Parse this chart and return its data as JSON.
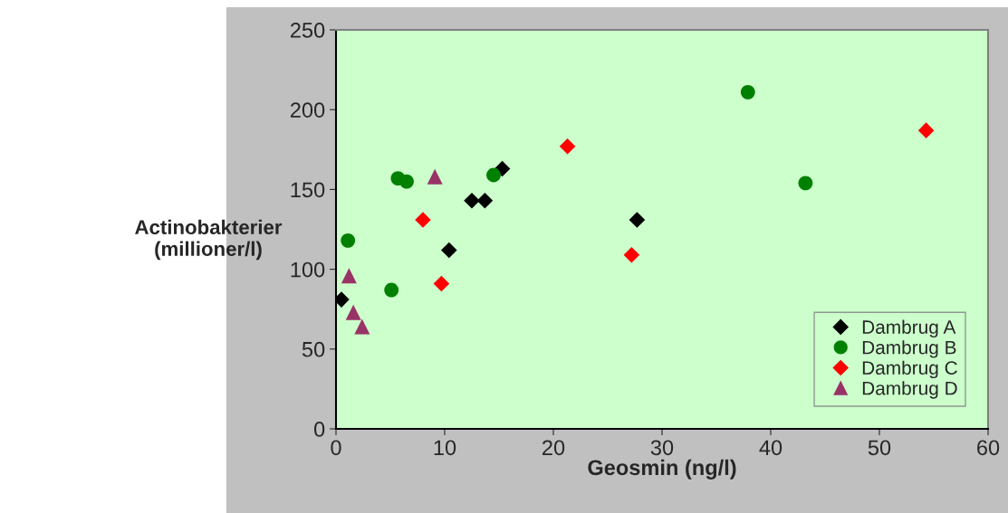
{
  "chart_data": {
    "type": "scatter",
    "xlabel": "Geosmin (ng/l)",
    "ylabel": "Actinobakterier\n(millioner/l)",
    "xlim": [
      0,
      60
    ],
    "xticks": [
      0,
      10,
      20,
      30,
      40,
      50,
      60
    ],
    "ylim": [
      0,
      250
    ],
    "yticks": [
      0,
      50,
      100,
      150,
      200,
      250
    ],
    "grid": false,
    "legend": "bottom right",
    "series": [
      {
        "name": "Dambrug A",
        "color": "#000000",
        "marker": "diamond",
        "x": [
          0.5,
          10.4,
          12.5,
          13.7,
          15.3,
          27.7
        ],
        "values": [
          81,
          112,
          143,
          143,
          163,
          131
        ]
      },
      {
        "name": "Dambrug B",
        "color": "#008000",
        "marker": "circle",
        "x": [
          1.1,
          5.1,
          5.7,
          6.5,
          14.5,
          37.9,
          43.2
        ],
        "values": [
          118,
          87,
          157,
          155,
          159,
          211,
          154
        ]
      },
      {
        "name": "Dambrug C",
        "color": "#ff0000",
        "marker": "diamond",
        "x": [
          8.0,
          9.7,
          21.3,
          27.2,
          54.3
        ],
        "values": [
          131,
          91,
          177,
          109,
          187
        ]
      },
      {
        "name": "Dambrug D",
        "color": "#993366",
        "marker": "triangle",
        "x": [
          1.2,
          1.6,
          2.4,
          9.1
        ],
        "values": [
          96,
          73,
          64,
          158
        ]
      }
    ]
  }
}
